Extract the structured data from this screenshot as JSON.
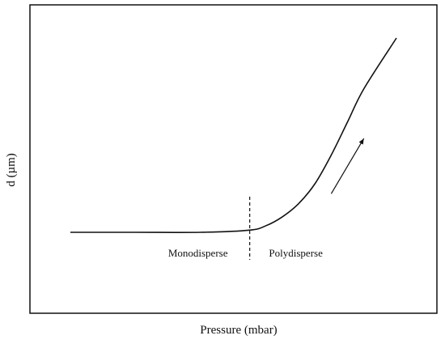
{
  "chart_data": {
    "type": "line",
    "title": "",
    "xlabel": "Pressure (mbar)",
    "ylabel": "d (µm)",
    "grid": false,
    "legend": "none",
    "series": [
      {
        "x": [
          0.0,
          0.2,
          0.4,
          0.55,
          0.6,
          0.65,
          0.7,
          0.75,
          0.8,
          0.85,
          0.9,
          1.0
        ],
        "y": [
          0.0,
          0.0,
          0.0,
          0.02,
          0.06,
          0.14,
          0.26,
          0.44,
          0.7,
          1.0,
          1.3,
          1.76
        ]
      }
    ],
    "annotations": {
      "threshold_x": 0.55,
      "left_region_label": "Monodisperse",
      "right_region_label": "Polydisperse",
      "arrow": {
        "from": [
          0.8,
          0.35
        ],
        "to": [
          0.9,
          0.85
        ]
      }
    },
    "colors": {
      "line": "#111111",
      "frame": "#111111",
      "background": "#ffffff"
    }
  }
}
